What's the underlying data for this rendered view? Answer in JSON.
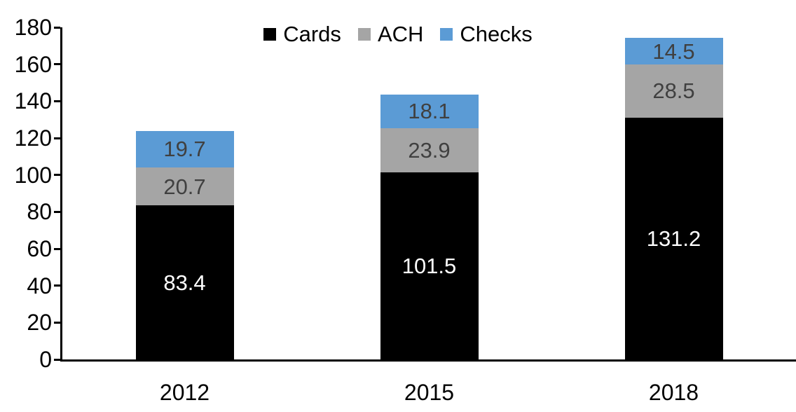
{
  "chart_data": {
    "type": "bar",
    "stacked": true,
    "categories": [
      "2012",
      "2015",
      "2018"
    ],
    "series": [
      {
        "name": "Cards",
        "color": "#000000",
        "label_color": "#ffffff",
        "values": [
          83.4,
          101.5,
          131.2
        ]
      },
      {
        "name": "ACH",
        "color": "#a5a5a5",
        "label_color": "#404040",
        "values": [
          20.7,
          23.9,
          28.5
        ]
      },
      {
        "name": "Checks",
        "color": "#5b9bd5",
        "label_color": "#404040",
        "values": [
          19.7,
          18.1,
          14.5
        ]
      }
    ],
    "ylim": [
      0,
      180
    ],
    "ytick_step": 20,
    "ytick_labels": [
      "0",
      "20",
      "40",
      "60",
      "80",
      "100",
      "120",
      "140",
      "160",
      "180"
    ],
    "legend_position": "top-center",
    "grid": false,
    "axis_color": "#000000",
    "background_color": "#ffffff"
  }
}
